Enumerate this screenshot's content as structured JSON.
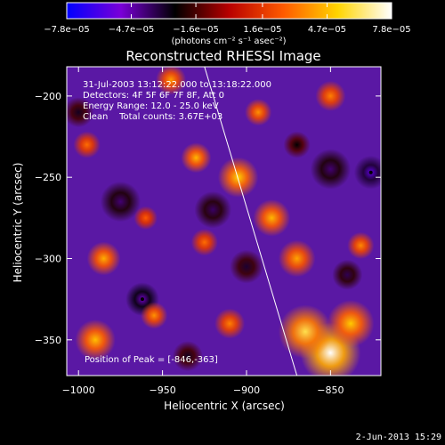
{
  "chart_data": {
    "type": "heatmap",
    "title": "Reconstructed RHESSI Image",
    "xlabel": "Heliocentric X (arcsec)",
    "ylabel": "Heliocentric Y (arcsec)",
    "xlim": [
      -1007,
      -820
    ],
    "ylim": [
      -372,
      -182
    ],
    "x_ticks": [
      -1000,
      -950,
      -900,
      -850
    ],
    "x_tick_labels": [
      "−1000",
      "−950",
      "−900",
      "−850"
    ],
    "y_ticks": [
      -200,
      -250,
      -300,
      -350
    ],
    "y_tick_labels": [
      "−200",
      "−250",
      "−300",
      "−350"
    ],
    "colorbar": {
      "label": "(photons cm⁻² s⁻¹ asec⁻²)",
      "min": -7.8e-05,
      "max": 7.8e-05,
      "ticks": [
        -7.8e-05,
        -4.7e-05,
        -1.6e-05,
        1.6e-05,
        4.7e-05,
        7.8e-05
      ],
      "tick_labels": [
        "−7.8e−05",
        "−4.7e−05",
        "−1.6e−05",
        "1.6e−05",
        "4.7e−05",
        "7.8e−05"
      ],
      "colors": [
        "#0000ff",
        "#7a00d8",
        "#000000",
        "#b80000",
        "#ff5a00",
        "#ffd400",
        "#ffffff"
      ]
    },
    "annotations": [
      "31-Jul-2003 13:12:22.000 to 13:18:22.000",
      "Detectors: 4F 5F 6F 7F 8F, Att 0",
      "Energy Range: 12.0 - 25.0 keV",
      "Clean    Total counts: 3.67E+03"
    ],
    "peak_label": "Position of Peak = [-846,-363]",
    "peak_position": [
      -846,
      -363
    ],
    "limb_line": [
      [
        -925,
        -182
      ],
      [
        -870,
        -372
      ]
    ],
    "marked_points": [
      [
        -962,
        -325
      ],
      [
        -826,
        -247
      ]
    ],
    "bright_sources": [
      {
        "x": -850,
        "y": -358,
        "value": 7.8e-05,
        "size": 18
      },
      {
        "x": -865,
        "y": -345,
        "value": 6e-05,
        "size": 16
      },
      {
        "x": -838,
        "y": -340,
        "value": 5e-05,
        "size": 14
      },
      {
        "x": -905,
        "y": -250,
        "value": 5.2e-05,
        "size": 12
      },
      {
        "x": -885,
        "y": -275,
        "value": 4.6e-05,
        "size": 11
      },
      {
        "x": -870,
        "y": -300,
        "value": 4.2e-05,
        "size": 11
      },
      {
        "x": -930,
        "y": -238,
        "value": 4.6e-05,
        "size": 9
      },
      {
        "x": -990,
        "y": -350,
        "value": 4.8e-05,
        "size": 12
      },
      {
        "x": -985,
        "y": -300,
        "value": 4.4e-05,
        "size": 10
      },
      {
        "x": -955,
        "y": -335,
        "value": 3.8e-05,
        "size": 8
      },
      {
        "x": -945,
        "y": -190,
        "value": 4e-05,
        "size": 9
      },
      {
        "x": -893,
        "y": -210,
        "value": 3.8e-05,
        "size": 8
      },
      {
        "x": -850,
        "y": -200,
        "value": 3.4e-05,
        "size": 9
      },
      {
        "x": -832,
        "y": -292,
        "value": 3.6e-05,
        "size": 8
      },
      {
        "x": -995,
        "y": -230,
        "value": 3e-05,
        "size": 8
      },
      {
        "x": -910,
        "y": -340,
        "value": 3.4e-05,
        "size": 9
      },
      {
        "x": -925,
        "y": -290,
        "value": 3e-05,
        "size": 8
      },
      {
        "x": -960,
        "y": -275,
        "value": 2.6e-05,
        "size": 7
      }
    ],
    "dark_sources": [
      {
        "x": -962,
        "y": -325,
        "value": -5e-05,
        "size": 10
      },
      {
        "x": -826,
        "y": -247,
        "value": -5.8e-05,
        "size": 10
      },
      {
        "x": -975,
        "y": -265,
        "value": -4e-05,
        "size": 12
      },
      {
        "x": -920,
        "y": -270,
        "value": -3.8e-05,
        "size": 11
      },
      {
        "x": -900,
        "y": -305,
        "value": -3.2e-05,
        "size": 10
      },
      {
        "x": -850,
        "y": -245,
        "value": -4e-05,
        "size": 12
      },
      {
        "x": -840,
        "y": -310,
        "value": -3.6e-05,
        "size": 9
      },
      {
        "x": -1000,
        "y": -210,
        "value": -3e-05,
        "size": 9
      },
      {
        "x": -935,
        "y": -360,
        "value": -3e-05,
        "size": 9
      },
      {
        "x": -870,
        "y": -230,
        "value": -2.6e-05,
        "size": 8
      }
    ]
  },
  "footer": {
    "date": "2-Jun-2013 15:29"
  }
}
